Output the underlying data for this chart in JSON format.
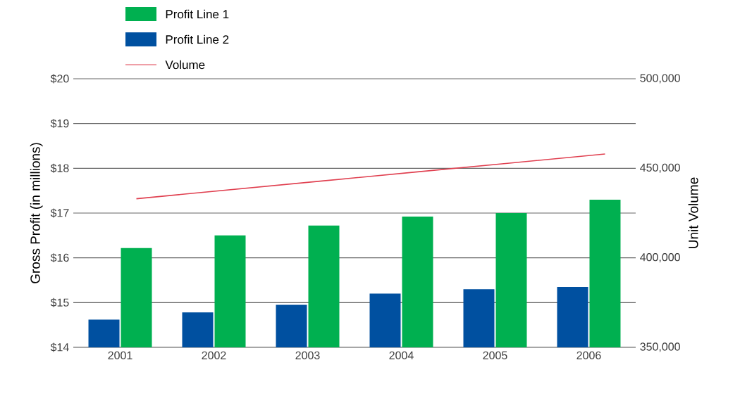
{
  "chart_data": {
    "type": "bar",
    "categories": [
      "2001",
      "2002",
      "2003",
      "2004",
      "2005",
      "2006"
    ],
    "series": [
      {
        "name": "Profit Line 1",
        "color": "#00b050",
        "values": [
          16.22,
          16.5,
          16.72,
          16.92,
          17.0,
          17.3
        ]
      },
      {
        "name": "Profit Line 2",
        "color": "#0050a0",
        "values": [
          14.62,
          14.78,
          14.95,
          15.2,
          15.3,
          15.35
        ]
      },
      {
        "name": "Volume",
        "type": "line",
        "axis": "y2",
        "color": "#e04050",
        "values": [
          433000,
          438000,
          443000,
          448000,
          453000,
          458000
        ]
      }
    ],
    "ylabel": "Gross Profit  (in millions)",
    "y2label": "Unit Volume",
    "ylim": [
      14,
      20
    ],
    "yticks": [
      {
        "value": 14,
        "label": "$14"
      },
      {
        "value": 15,
        "label": "$15"
      },
      {
        "value": 16,
        "label": "$16"
      },
      {
        "value": 17,
        "label": "$17"
      },
      {
        "value": 18,
        "label": "$18"
      },
      {
        "value": 19,
        "label": "$19"
      },
      {
        "value": 20,
        "label": "$20"
      }
    ],
    "y2lim": [
      350000,
      500000
    ],
    "y2ticks": [
      {
        "value": 350000,
        "label": "350,000"
      },
      {
        "value": 400000,
        "label": "400,000"
      },
      {
        "value": 450000,
        "label": "450,000"
      },
      {
        "value": 500000,
        "label": "500,000"
      }
    ],
    "grid": "y",
    "legend": "top left"
  }
}
